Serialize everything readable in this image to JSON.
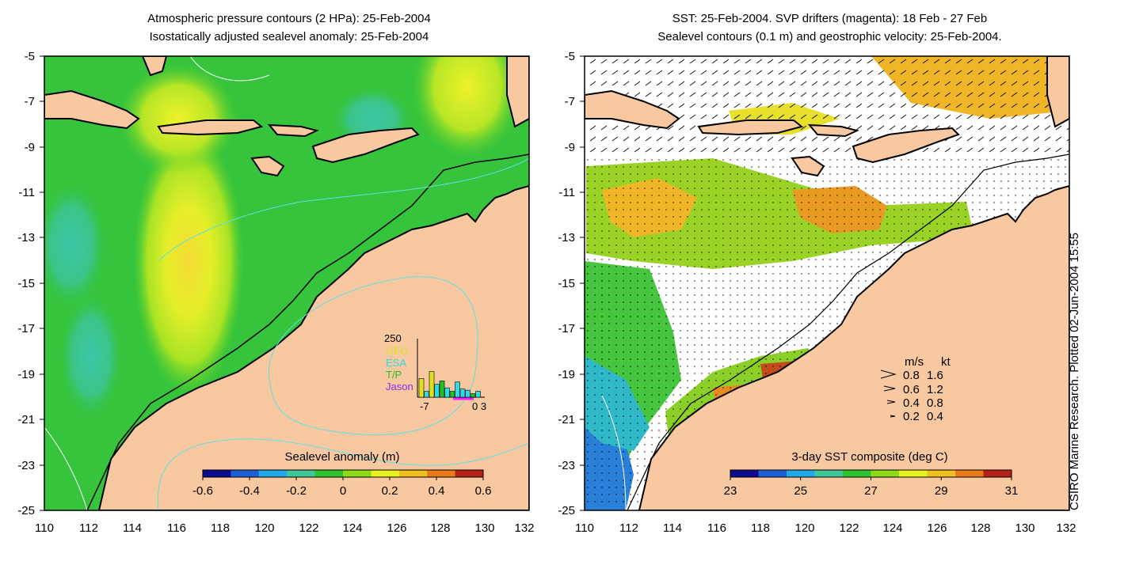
{
  "left_panel": {
    "title_line1": "Atmospheric pressure contours (2 HPa): 25-Feb-2004",
    "title_line2": "Isostatically adjusted sealevel anomaly: 25-Feb-2004",
    "colorbar": {
      "title": "Sealevel anomaly (m)",
      "ticks": [
        "-0.6",
        "-0.4",
        "-0.2",
        "0",
        "0.2",
        "0.4",
        "0.6"
      ],
      "range": [
        -0.6,
        0.6
      ],
      "colors": [
        "#0c0c8c",
        "#1f5fd6",
        "#22a9e6",
        "#3fc79a",
        "#2ec32e",
        "#8ed81a",
        "#e8f21e",
        "#f0c020",
        "#e87a1c",
        "#b5201a"
      ]
    },
    "inset": {
      "ymax_label": "250",
      "legend": [
        {
          "name": "GFO",
          "color": "#e0e020"
        },
        {
          "name": "ESA",
          "color": "#30d8e8"
        },
        {
          "name": "T/P",
          "color": "#20c020"
        },
        {
          "name": "Jason",
          "color": "#8030e8"
        }
      ],
      "x_left_label": "-7",
      "x_right_label": "0 3",
      "bars": [
        80,
        25,
        110,
        55,
        70,
        40,
        25,
        65,
        35,
        30,
        15,
        25
      ],
      "bar_colors": [
        "#e0e020",
        "#30d8e8",
        "#e0e020",
        "#30d8e8",
        "#20c020",
        "#30d8e8",
        "#20c020",
        "#30d8e8",
        "#30d8e8",
        "#30d8e8",
        "#20c020",
        "#30d8e8"
      ]
    }
  },
  "right_panel": {
    "title_line1": "SST: 25-Feb-2004. SVP drifters (magenta): 18 Feb - 27 Feb",
    "title_line2": "Sealevel contours (0.1 m) and geostrophic velocity: 25-Feb-2004.",
    "colorbar": {
      "title": "3-day SST composite (deg C)",
      "ticks": [
        "23",
        "25",
        "27",
        "29",
        "31"
      ],
      "range": [
        23,
        31
      ],
      "colors": [
        "#0c0c8c",
        "#1f5fd6",
        "#22a9e6",
        "#3fc79a",
        "#2ec32e",
        "#8ed81a",
        "#e8f21e",
        "#f0c020",
        "#e87a1c",
        "#b5201a"
      ]
    },
    "velocity_legend": {
      "header_ms": "m/s",
      "header_kt": "kt",
      "rows": [
        {
          "ms": "0.8",
          "kt": "1.6"
        },
        {
          "ms": "0.6",
          "kt": "1.2"
        },
        {
          "ms": "0.4",
          "kt": "0.8"
        },
        {
          "ms": "0.2",
          "kt": "0.4"
        }
      ]
    }
  },
  "axes": {
    "x_ticks": [
      "110",
      "112",
      "114",
      "116",
      "118",
      "120",
      "122",
      "124",
      "126",
      "128",
      "130",
      "132"
    ],
    "y_ticks": [
      "-5",
      "-7",
      "-9",
      "-11",
      "-13",
      "-15",
      "-17",
      "-19",
      "-21",
      "-23",
      "-25"
    ],
    "lon_range": [
      110,
      132
    ],
    "lat_range": [
      -25,
      -5
    ]
  },
  "credit": "CSIRO Marine Research. Plotted 02-Jun-2004 15:55",
  "colors": {
    "land": "#f8c8a0",
    "ocean_base": "#33c43a",
    "no_data": "#ffffff"
  }
}
